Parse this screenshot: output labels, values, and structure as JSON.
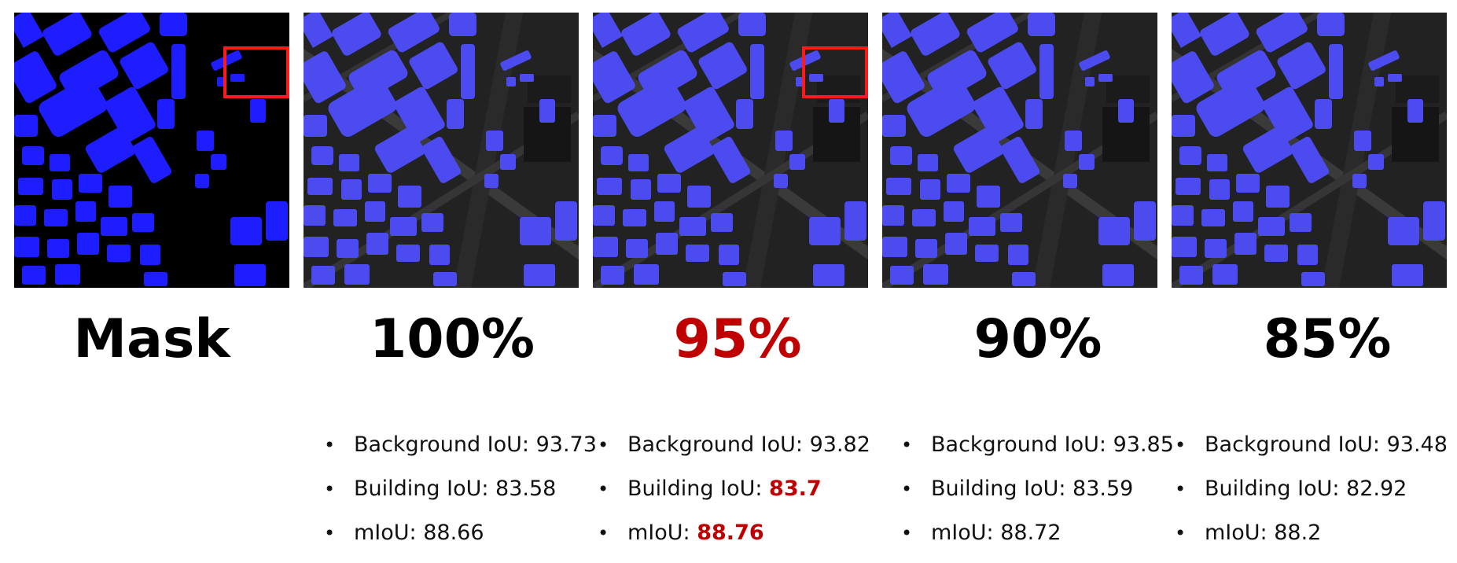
{
  "colors": {
    "building": "#1d1dff",
    "overlay_building": "#4b4bf0",
    "background": "#000000",
    "highlight": "#c00000",
    "box": "#ff1a1a"
  },
  "panels": [
    {
      "caption": "Mask",
      "kind": "mask",
      "highlight_box": true,
      "highlight_caption": false
    },
    {
      "caption": "100%",
      "kind": "overlay",
      "highlight_box": false,
      "highlight_caption": false
    },
    {
      "caption": "95%",
      "kind": "overlay",
      "highlight_box": true,
      "highlight_caption": true
    },
    {
      "caption": "90%",
      "kind": "overlay",
      "highlight_box": false,
      "highlight_caption": false
    },
    {
      "caption": "85%",
      "kind": "overlay",
      "highlight_box": false,
      "highlight_caption": false
    }
  ],
  "stats": [
    {
      "background_label": "Background IoU: ",
      "background": "93.73",
      "building_label": "Building IoU: ",
      "building": "83.58",
      "miou_label": "mIoU: ",
      "miou": "88.66",
      "highlight": false
    },
    {
      "background_label": "Background IoU: ",
      "background": "93.82",
      "building_label": "Building IoU: ",
      "building": "83.7",
      "miou_label": "mIoU: ",
      "miou": "88.76",
      "highlight": true
    },
    {
      "background_label": "Background IoU: ",
      "background": "93.85",
      "building_label": "Building IoU: ",
      "building": "83.59",
      "miou_label": "mIoU: ",
      "miou": "88.72",
      "highlight": false
    },
    {
      "background_label": "Background IoU: ",
      "background": "93.48",
      "building_label": "Building IoU: ",
      "building": "82.92",
      "miou_label": "mIoU: ",
      "miou": "88.2",
      "highlight": false
    }
  ]
}
